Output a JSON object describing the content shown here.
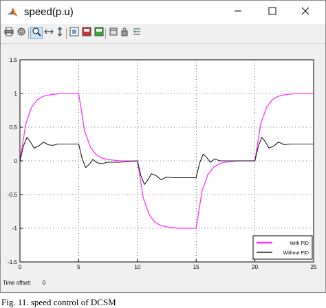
{
  "window": {
    "title": "speed(p.u)"
  },
  "toolbar": {
    "icons": [
      "print-icon",
      "parameters-icon",
      "zoom-in-icon",
      "zoom-x-icon",
      "zoom-y-icon",
      "autoscale-icon",
      "save-axes-icon",
      "restore-axes-icon",
      "lock-icon",
      "signal-selector-icon"
    ]
  },
  "colors": {
    "with_pid": "#ff33ff",
    "without_pid": "#1a1a1a",
    "grid": "#000000",
    "plot_bg": "#ffffff"
  },
  "chart_data": {
    "type": "line",
    "xlim": [
      0,
      25
    ],
    "ylim": [
      -1.5,
      1.5
    ],
    "xticks": [
      0,
      5,
      10,
      15,
      20,
      25
    ],
    "yticks": [
      -1.5,
      -1,
      -0.5,
      0,
      0.5,
      1,
      1.5
    ],
    "xtick_labels": [
      "0",
      "5",
      "10",
      "15",
      "20",
      "25"
    ],
    "ytick_labels": [
      "-1.5",
      "-1",
      "-0.5",
      "0",
      "0.5",
      "1",
      "1.5"
    ],
    "grid": true,
    "legend_position": "bottom-right",
    "series": [
      {
        "name": "With PID",
        "x": [
          0,
          0.5,
          1,
          1.5,
          2,
          2.5,
          3,
          3.5,
          4,
          5,
          5.5,
          6,
          6.5,
          7,
          7.5,
          8,
          8.5,
          9,
          10,
          10.5,
          11,
          11.5,
          12,
          12.5,
          13,
          13.5,
          14,
          15,
          15.5,
          16,
          16.5,
          17,
          17.5,
          18,
          18.5,
          19,
          20,
          20.5,
          21,
          21.5,
          22,
          22.5,
          23,
          23.5,
          24,
          25
        ],
        "y": [
          0,
          0.55,
          0.8,
          0.91,
          0.96,
          0.98,
          0.99,
          1.0,
          1.0,
          1.0,
          0.45,
          0.2,
          0.09,
          0.04,
          0.02,
          0.01,
          0.0,
          0.0,
          0.0,
          -0.55,
          -0.8,
          -0.91,
          -0.96,
          -0.98,
          -0.99,
          -1.0,
          -1.0,
          -1.0,
          -0.45,
          -0.2,
          -0.09,
          -0.04,
          -0.02,
          -0.01,
          0.0,
          0.0,
          0.0,
          0.55,
          0.8,
          0.91,
          0.96,
          0.98,
          0.99,
          1.0,
          1.0,
          1.0
        ]
      },
      {
        "name": "Without PID",
        "x": [
          0,
          0.3,
          0.6,
          0.9,
          1.2,
          1.6,
          2.0,
          2.4,
          2.8,
          3.2,
          3.6,
          4.0,
          4.5,
          5.0,
          5.3,
          5.6,
          5.9,
          6.2,
          6.6,
          7.0,
          7.5,
          8.0,
          8.5,
          9.0,
          10.0,
          10.3,
          10.6,
          10.9,
          11.2,
          11.6,
          12.0,
          12.5,
          13,
          13.5,
          14,
          14.5,
          15.0,
          15.3,
          15.6,
          15.9,
          16.2,
          16.6,
          17.0,
          17.5,
          18,
          18.5,
          19,
          20.0,
          20.3,
          20.6,
          20.9,
          21.2,
          21.6,
          22.0,
          22.5,
          23,
          23.5,
          24,
          24.5,
          25
        ],
        "y": [
          0,
          0.22,
          0.35,
          0.28,
          0.19,
          0.22,
          0.28,
          0.24,
          0.23,
          0.25,
          0.25,
          0.25,
          0.25,
          0.25,
          0.03,
          -0.1,
          -0.05,
          0.02,
          -0.03,
          -0.04,
          -0.02,
          -0.02,
          -0.02,
          -0.01,
          0.0,
          -0.22,
          -0.35,
          -0.28,
          -0.19,
          -0.22,
          -0.28,
          -0.24,
          -0.25,
          -0.25,
          -0.25,
          -0.25,
          -0.25,
          -0.03,
          0.1,
          0.05,
          -0.02,
          0.03,
          0.0,
          0.0,
          0.0,
          0.0,
          0.0,
          0.0,
          0.22,
          0.35,
          0.28,
          0.19,
          0.22,
          0.28,
          0.24,
          0.25,
          0.25,
          0.25,
          0.25,
          0.25
        ]
      }
    ]
  },
  "status": {
    "time_offset_label": "Time offset:",
    "time_offset_value": "0"
  },
  "caption": "Fig. 11. speed control of DCSM"
}
